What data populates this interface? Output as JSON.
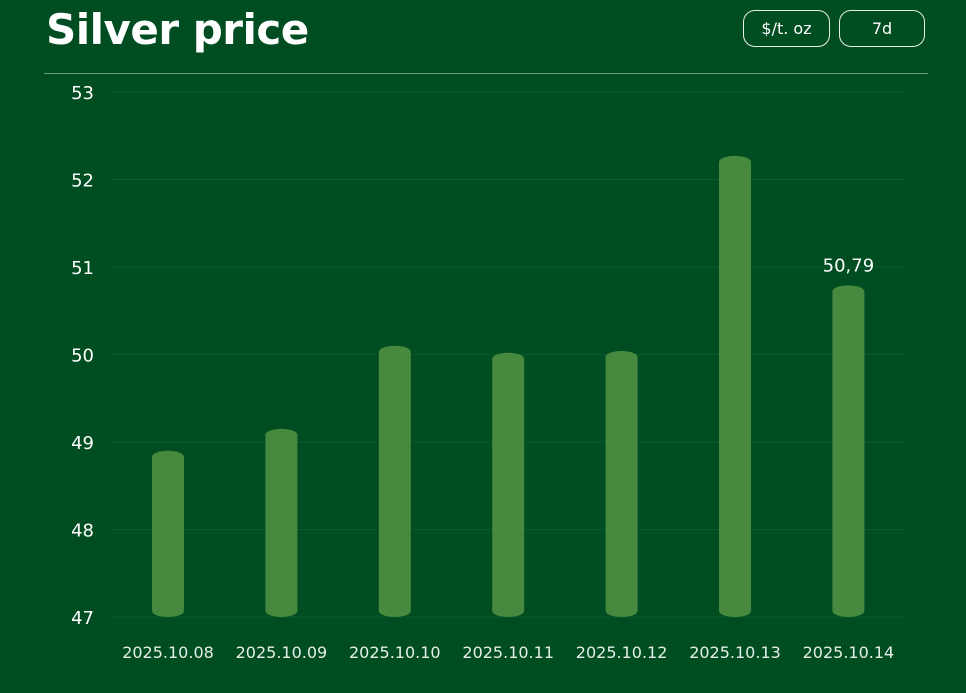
{
  "header": {
    "title": "Silver price",
    "unit_label": "$/t. oz",
    "range_label": "7d"
  },
  "colors": {
    "background": "#004d22",
    "bar": "#46893f",
    "grid": "#0b5a2b"
  },
  "chart_data": {
    "type": "bar",
    "title": "Silver price",
    "xlabel": "",
    "ylabel": "",
    "categories": [
      "2025.10.08",
      "2025.10.09",
      "2025.10.10",
      "2025.10.11",
      "2025.10.12",
      "2025.10.13",
      "2025.10.14"
    ],
    "values": [
      48.9,
      49.15,
      50.1,
      50.02,
      50.04,
      52.27,
      50.79
    ],
    "ylim": [
      47,
      53
    ],
    "yticks": [
      47,
      48,
      49,
      50,
      51,
      52,
      53
    ],
    "data_labels": [
      null,
      null,
      null,
      null,
      null,
      null,
      "50,79"
    ],
    "grid": true,
    "legend": "none"
  }
}
